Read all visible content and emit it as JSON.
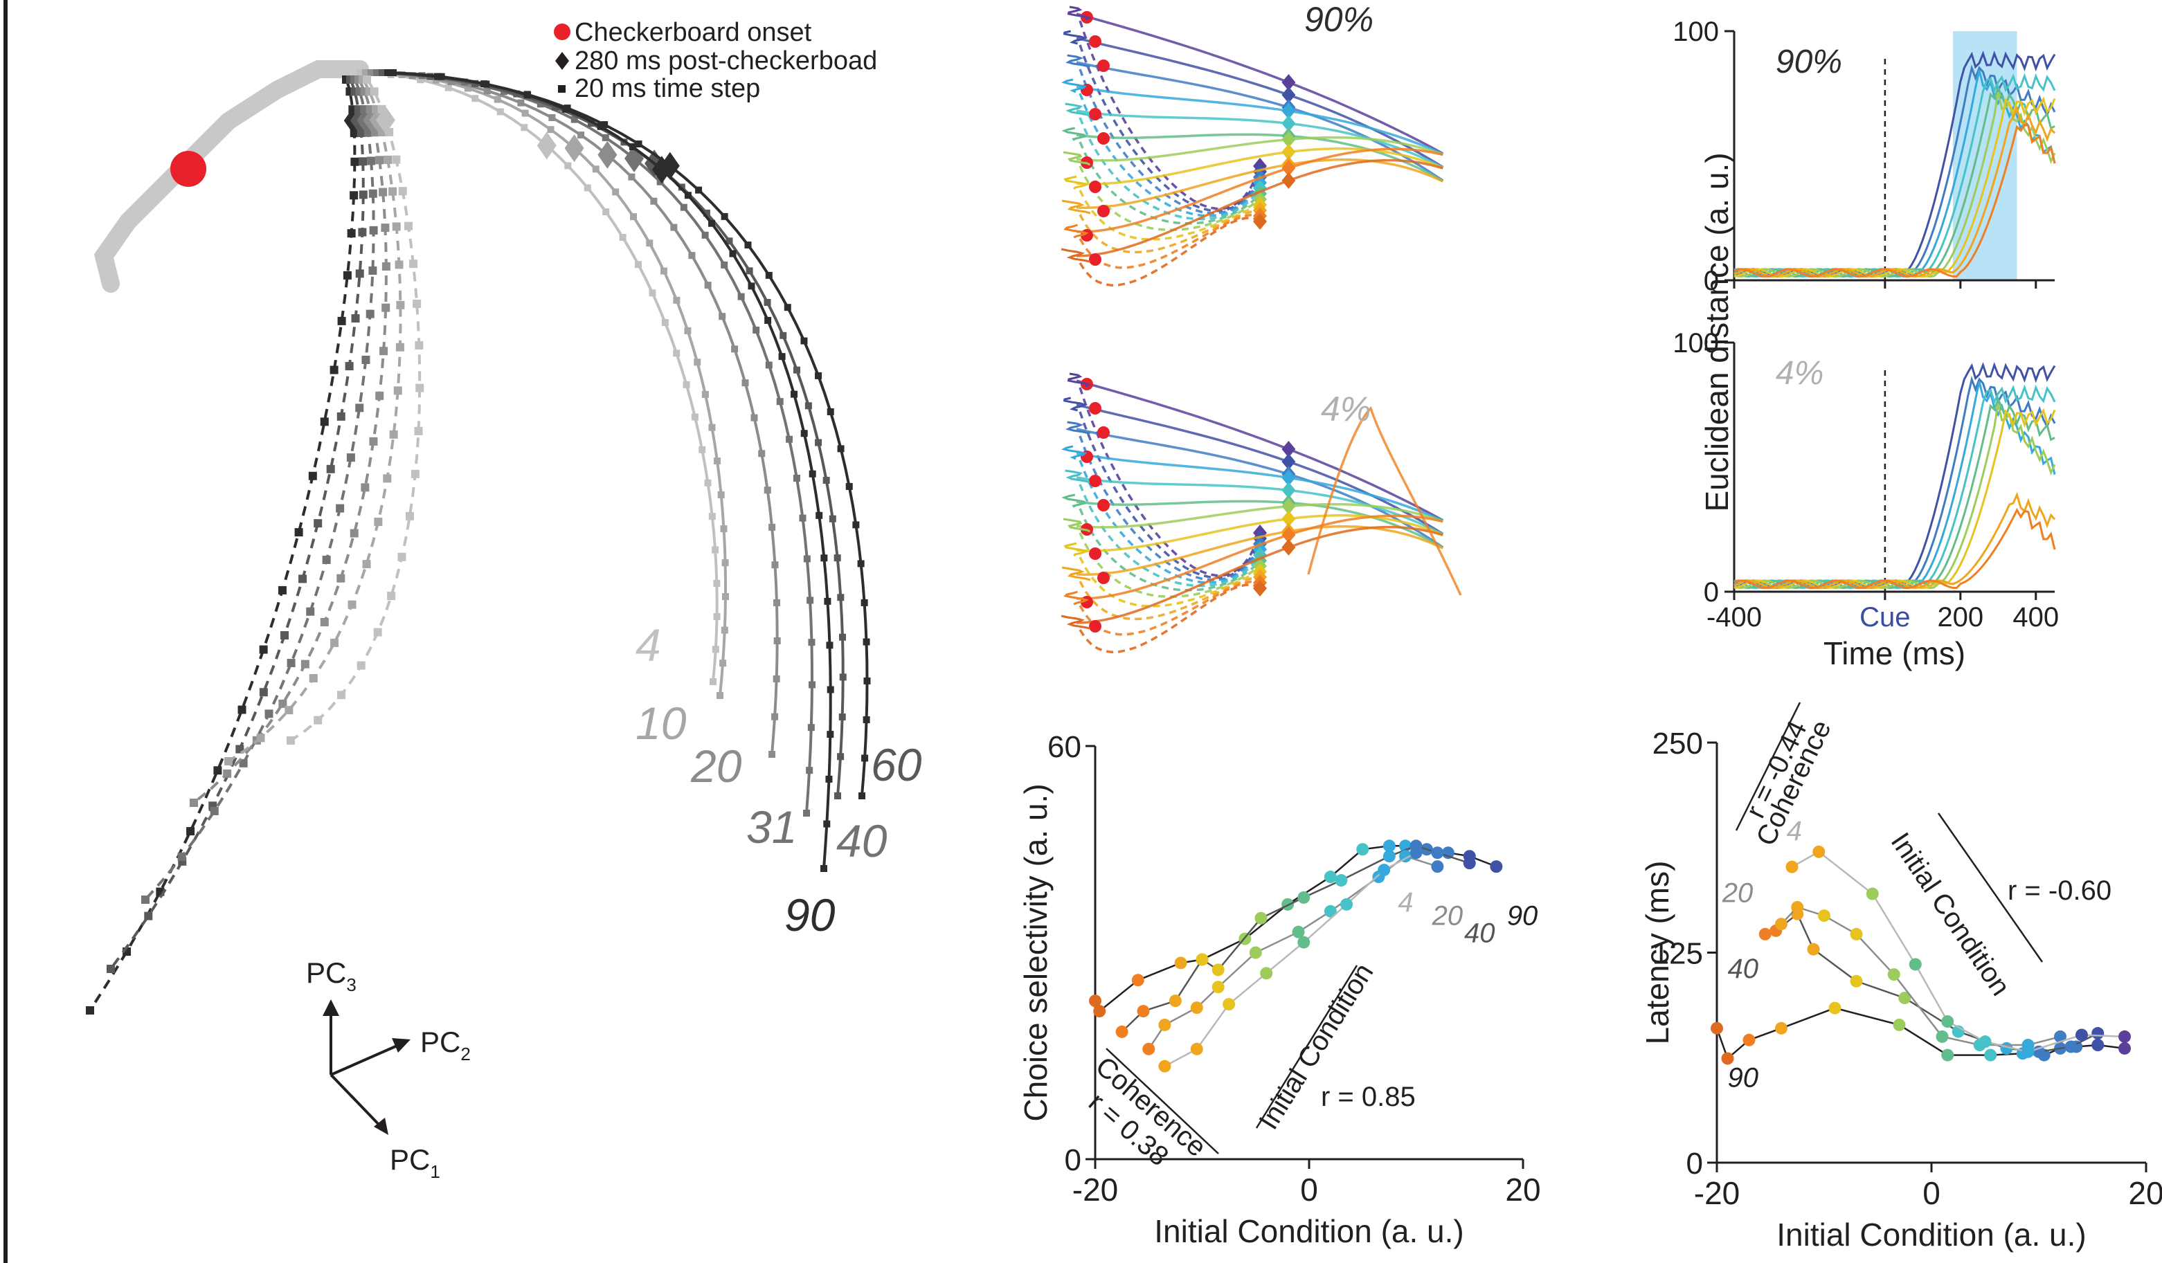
{
  "legend": {
    "onset": "Checkerboard onset",
    "post280": "280 ms post-checkerboad",
    "step": "20 ms time step"
  },
  "axes3d": {
    "pc1": "PC",
    "pc1_sub": "1",
    "pc2": "PC",
    "pc2_sub": "2",
    "pc3": "PC",
    "pc3_sub": "3"
  },
  "colors": {
    "onset": "#e8202a",
    "gray_scale": [
      "#c0c0c0",
      "#a6a6a6",
      "#8c8c8c",
      "#737373",
      "#595959",
      "#2d2d2d"
    ],
    "spectrum": [
      "#5b3f9a",
      "#4052a5",
      "#3f7cc4",
      "#35a9dc",
      "#47c2c7",
      "#63bd8a",
      "#9ccd5c",
      "#e6c31f",
      "#f0a51e",
      "#ef7f22",
      "#de6a1f"
    ],
    "highlight": "#b8e2f5"
  },
  "chart_data": [
    {
      "type": "line",
      "title": "",
      "panel": "A",
      "description_labels": [
        "4",
        "10",
        "20",
        "31",
        "40",
        "60",
        "90"
      ],
      "series": [
        {
          "name": "4",
          "values": []
        },
        {
          "name": "10",
          "values": []
        },
        {
          "name": "20",
          "values": []
        },
        {
          "name": "31",
          "values": []
        },
        {
          "name": "40",
          "values": []
        },
        {
          "name": "60",
          "values": []
        },
        {
          "name": "90",
          "values": []
        }
      ]
    },
    {
      "type": "line",
      "panel": "B-top",
      "title": "90%"
    },
    {
      "type": "line",
      "panel": "B-bottom",
      "title": "4%"
    },
    {
      "type": "line",
      "panel": "C-top",
      "title": "90%",
      "ylim": [
        0,
        100
      ],
      "yticks": [
        "0",
        "100"
      ],
      "shaded_x": [
        180,
        350
      ]
    },
    {
      "type": "line",
      "panel": "C-bottom",
      "title": "4%",
      "ylim": [
        0,
        100
      ],
      "yticks": [
        "0",
        "100"
      ],
      "xlim": [
        -400,
        450
      ],
      "xticks": [
        "-400",
        "Cue",
        "200",
        "400"
      ],
      "xlabel": "Time (ms)",
      "ylabel": "Euclidean distance (a. u.)"
    },
    {
      "type": "scatter",
      "panel": "D",
      "xlabel": "Initial Condition (a. u.)",
      "ylabel": "Choice selectivity (a. u.)",
      "xlim": [
        -20,
        20
      ],
      "ylim": [
        0,
        60
      ],
      "xticks": [
        "-20",
        "0",
        "20"
      ],
      "yticks": [
        "0",
        "60"
      ],
      "annotations": {
        "coh_arrow": "Coherence",
        "coh_r": "r = 0.38",
        "ic_arrow": "Initial Condition",
        "ic_r": "r = 0.85",
        "l4": "4",
        "l20": "20",
        "l40": "40",
        "l90": "90"
      },
      "series": [
        {
          "name": "90",
          "x": [
            -20.0,
            -19.6,
            -16.0,
            -12.0,
            -10.0,
            -6.0,
            -2.0,
            2.0,
            5.0,
            7.5,
            9.0,
            11.0,
            13.0,
            15.0,
            17.5
          ],
          "y": [
            23,
            21.5,
            26,
            28.5,
            29,
            32,
            37,
            41,
            45,
            45.5,
            45.5,
            45,
            44.5,
            44,
            42.5
          ]
        },
        {
          "name": "40",
          "x": [
            -17.5,
            -15.5,
            -12.5,
            -10.0,
            -8.5,
            -4.5,
            -0.5,
            3.0,
            7.5,
            10.0,
            12.0,
            15.0
          ],
          "y": [
            18.5,
            21.5,
            23,
            29,
            27.5,
            35,
            38,
            40.5,
            44,
            45.5,
            44.5,
            43
          ]
        },
        {
          "name": "20",
          "x": [
            -15.0,
            -13.5,
            -10.5,
            -8.5,
            -5.0,
            -1.0,
            2.0,
            6.5,
            9.0,
            12.0
          ],
          "y": [
            16,
            19.5,
            22,
            25,
            30,
            33,
            36,
            41,
            44,
            42.5
          ]
        },
        {
          "name": "4",
          "x": [
            -13.5,
            -10.5,
            -7.5,
            -4.0,
            -0.5,
            3.5,
            7.0,
            10.0
          ],
          "y": [
            13.5,
            16,
            22.5,
            27,
            31.5,
            37,
            42,
            44.5
          ]
        }
      ]
    },
    {
      "type": "scatter",
      "panel": "E",
      "xlabel": "Initial Condition (a. u.)",
      "ylabel": "Latency (ms)",
      "xlim": [
        -20,
        20
      ],
      "ylim": [
        0,
        250
      ],
      "xticks": [
        "-20",
        "0",
        "20"
      ],
      "yticks": [
        "0",
        "125",
        "250"
      ],
      "annotations": {
        "coh_r": "r = -0.44",
        "coh_arrow": "Coherence",
        "ic_arrow": "Initial Condition",
        "ic_r": "r = -0.60",
        "l4": "4",
        "l20": "20",
        "l40": "40",
        "l90": "90"
      },
      "series": [
        {
          "name": "90",
          "x": [
            -20.0,
            -19.0,
            -17.0,
            -14.0,
            -9.0,
            -3.0,
            1.5,
            5.5,
            8.5,
            10.5,
            12.0,
            13.5,
            15.5,
            18.0
          ],
          "y": [
            80,
            62,
            73,
            80,
            92,
            82,
            64,
            64,
            65,
            64,
            68,
            69,
            70,
            68
          ]
        },
        {
          "name": "40",
          "x": [
            -15.5,
            -14.5,
            -12.5,
            -11.0,
            -7.0,
            -2.5,
            2.5,
            7.0,
            10.0,
            13.0,
            15.5
          ],
          "y": [
            136,
            138,
            148,
            127,
            108,
            98,
            78,
            68,
            66,
            69,
            77
          ]
        },
        {
          "name": "20",
          "x": [
            -14.0,
            -12.5,
            -10.0,
            -7.0,
            -3.5,
            1.0,
            4.5,
            9.0,
            12.0
          ],
          "y": [
            142,
            152,
            147,
            136,
            112,
            75,
            70,
            70,
            75
          ]
        },
        {
          "name": "4",
          "x": [
            -13.0,
            -10.5,
            -5.5,
            -1.5,
            1.5,
            5.0,
            9.0,
            14.0,
            18.0
          ],
          "y": [
            176,
            185,
            160,
            118,
            84,
            72,
            66,
            76,
            75
          ]
        }
      ]
    }
  ]
}
